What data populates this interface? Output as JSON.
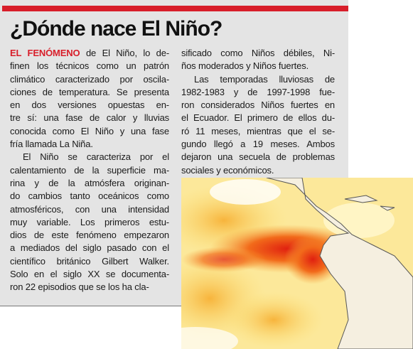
{
  "header": {
    "title": "¿Dónde nace El Niño?"
  },
  "article": {
    "lead": "EL FENÓMENO",
    "columns": [
      {
        "paragraphs": [
          {
            "lines": [
              " de El Niño, lo de-",
              "finen los técnicos como un patrón",
              "climático caracterizado por oscila-",
              "ciones de temperatura. Se presenta",
              "en dos versiones opuestas en-",
              "tre sí: una fase de calor y lluvias",
              "conocida como El Niño y una fase",
              "fría llamada La Niña."
            ]
          },
          {
            "lines": [
              "El Niño se caracteriza por el",
              "calentamiento de la superficie ma-",
              "rina y de la atmósfera originan-",
              "do cambios tanto oceánicos como",
              "atmosféricos, con una intensidad",
              "muy variable. Los primeros estu-",
              "dios de este fenómeno empezaron",
              "a mediados del siglo pasado con el",
              "científico británico Gilbert Walker.",
              "Solo en el siglo XX se documenta-",
              "ron 22 episodios que se los ha cla-"
            ]
          }
        ]
      },
      {
        "paragraphs": [
          {
            "lines": [
              "sificado como Niños débiles, Ni-",
              "ños moderados y Niños fuertes."
            ]
          },
          {
            "lines": [
              "Las temporadas lluviosas de",
              "1982-1983 y de 1997-1998 fue-",
              "ron considerados Niños fuertes en",
              "el Ecuador. El primero de ellos du-",
              "ró 11 meses, mientras que el se-",
              "gundo llegó a 19 meses. Ambos",
              "dejaron una secuela de problemas",
              "sociales y económicos."
            ]
          }
        ]
      }
    ]
  }
}
